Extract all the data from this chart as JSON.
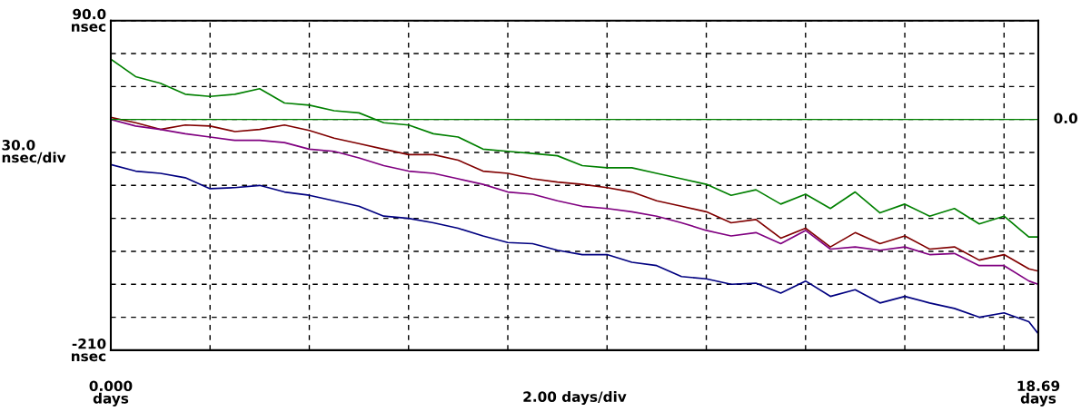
{
  "chart_data": {
    "type": "line",
    "x": [
      0,
      0.5,
      1,
      1.5,
      2,
      2.5,
      3,
      3.5,
      4,
      4.5,
      5,
      5.5,
      6,
      6.5,
      7,
      7.5,
      8,
      8.5,
      9,
      9.5,
      10,
      10.5,
      11,
      11.5,
      12,
      12.5,
      13,
      13.5,
      14,
      14.5,
      15,
      15.5,
      16,
      16.5,
      17,
      17.5,
      18,
      18.5,
      18.69
    ],
    "series": [
      {
        "color": "#008000",
        "values": [
          55,
          39,
          33,
          23,
          21,
          23,
          28,
          15,
          13,
          8,
          6,
          -3,
          -5,
          -13,
          -16,
          -27,
          -29,
          -31,
          -33,
          -42,
          -44,
          -44,
          -49,
          -54,
          -59,
          -69,
          -64,
          -77,
          -68,
          -81,
          -66,
          -85,
          -77,
          -88,
          -81,
          -95,
          -88,
          -107,
          -107
        ]
      },
      {
        "color": "#800000",
        "values": [
          2,
          -3,
          -9,
          -5,
          -6,
          -11,
          -9,
          -5,
          -10,
          -17,
          -22,
          -27,
          -32,
          -32,
          -37,
          -47,
          -49,
          -54,
          -57,
          -59,
          -62,
          -66,
          -74,
          -79,
          -84,
          -94,
          -91,
          -108,
          -99,
          -116,
          -103,
          -113,
          -106,
          -118,
          -116,
          -128,
          -123,
          -136,
          -138
        ]
      },
      {
        "color": "#800080",
        "values": [
          0,
          -6,
          -9,
          -13,
          -16,
          -19,
          -19,
          -21,
          -27,
          -29,
          -35,
          -42,
          -47,
          -49,
          -54,
          -59,
          -66,
          -68,
          -74,
          -79,
          -81,
          -84,
          -88,
          -94,
          -101,
          -106,
          -103,
          -113,
          -101,
          -118,
          -116,
          -119,
          -116,
          -123,
          -122,
          -133,
          -133,
          -147,
          -150
        ]
      },
      {
        "color": "#000080",
        "values": [
          -41,
          -47,
          -49,
          -53,
          -63,
          -62,
          -60,
          -66,
          -69,
          -74,
          -79,
          -88,
          -90,
          -94,
          -99,
          -106,
          -112,
          -113,
          -119,
          -123,
          -123,
          -130,
          -133,
          -143,
          -145,
          -150,
          -149,
          -158,
          -147,
          -161,
          -155,
          -167,
          -161,
          -167,
          -172,
          -180,
          -176,
          -184,
          -195
        ]
      }
    ],
    "xlim": [
      0,
      18.69
    ],
    "xticks": [
      {
        "value": 0,
        "label": "0.000\ndays"
      },
      {
        "value": 2,
        "label": null
      },
      {
        "value": 4,
        "label": null
      },
      {
        "value": 6,
        "label": null
      },
      {
        "value": 8,
        "label": null
      },
      {
        "value": 10,
        "label": null
      },
      {
        "value": 12,
        "label": null
      },
      {
        "value": 14,
        "label": null
      },
      {
        "value": 16,
        "label": null
      },
      {
        "value": 18,
        "label": null
      },
      {
        "value": 18.69,
        "label": "18.69\ndays"
      }
    ],
    "ylim": [
      -210,
      90
    ],
    "yticks": [
      {
        "value": -210,
        "label": "-210\nnsec"
      },
      {
        "value": -180,
        "label": null
      },
      {
        "value": -150,
        "label": null
      },
      {
        "value": -120,
        "label": null
      },
      {
        "value": -90,
        "label": null
      },
      {
        "value": -60,
        "label": null
      },
      {
        "value": -30,
        "label": null
      },
      {
        "value": 0,
        "label": null
      },
      {
        "value": 30,
        "label": null
      },
      {
        "value": 60,
        "label": null
      },
      {
        "value": 90,
        "label": "90.0\nnsec"
      }
    ],
    "ref_lines": [
      {
        "axis": "y",
        "value": 0,
        "label": "0.0",
        "color": "#008000"
      }
    ],
    "xlabel": "2.00 days/div",
    "ylabel": "30.0\nnsec/div",
    "grid": true,
    "marker": "none",
    "line_style": "solid"
  }
}
